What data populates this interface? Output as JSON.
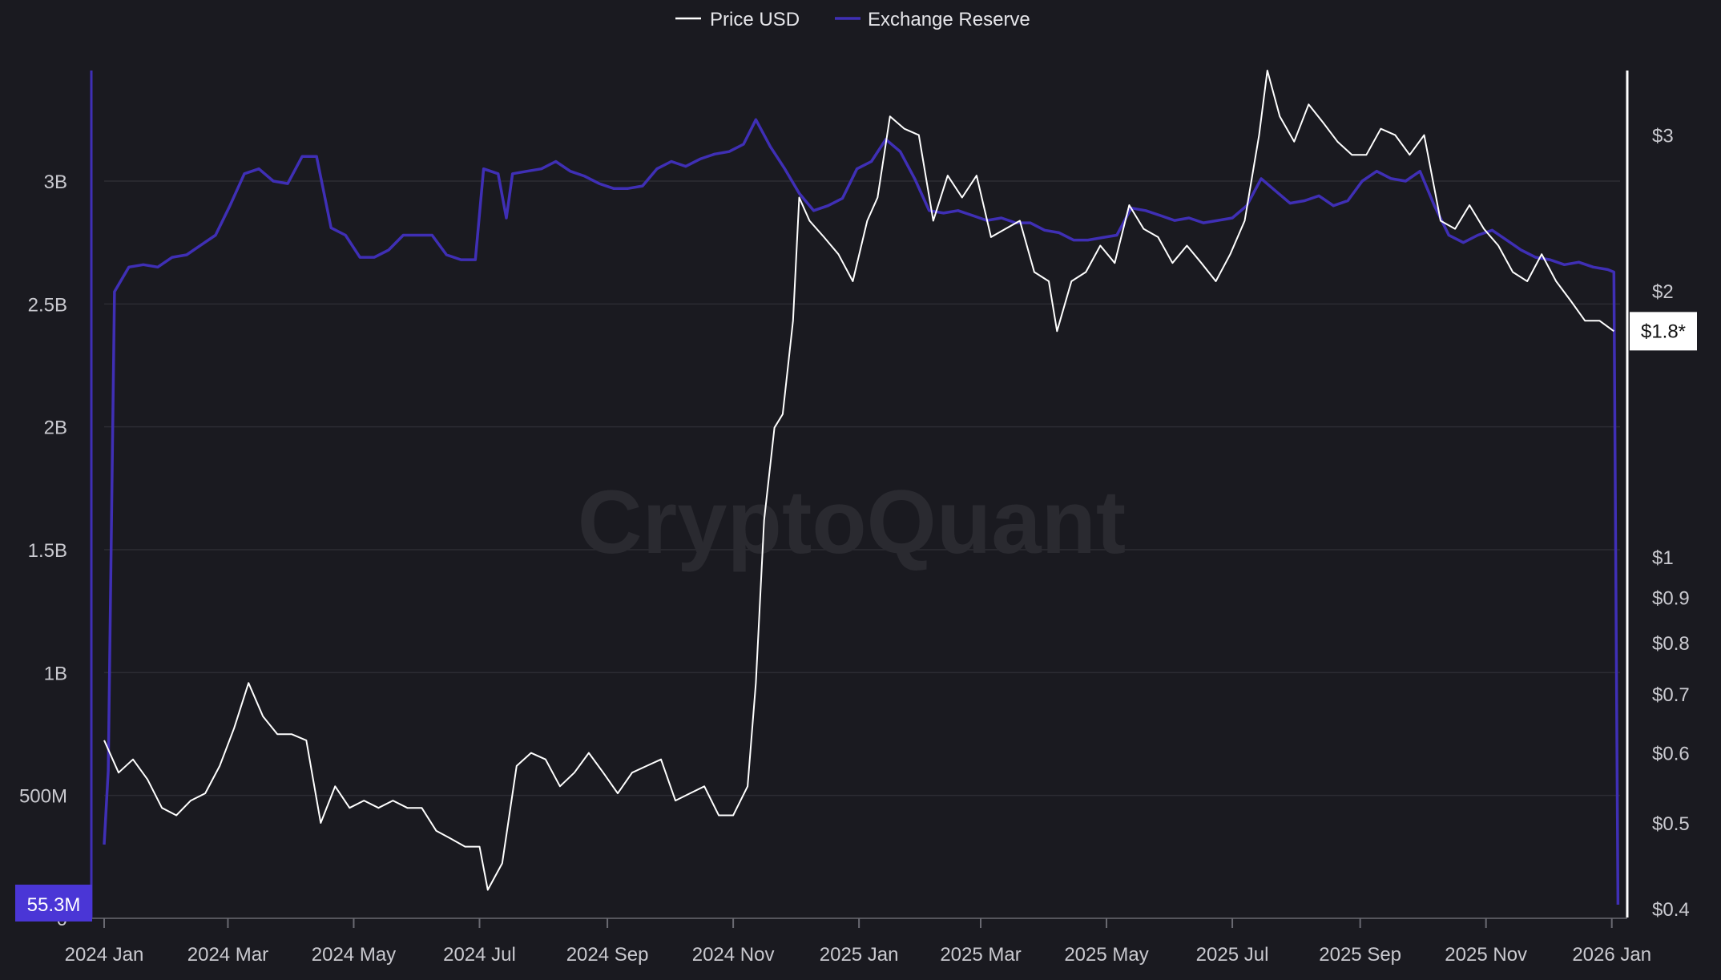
{
  "watermark": "CryptoQuant",
  "colors": {
    "background": "#1a1a20",
    "price": "#ffffff",
    "reserve": "#3f2fb5",
    "reserve_label_bg": "#4a36d6",
    "grid": "#2c2c33",
    "tick_text": "#c9c9cf",
    "watermark": "#2a2a30"
  },
  "chart_data": {
    "type": "line",
    "title": "",
    "legend": {
      "placement": "top-center",
      "entries": [
        {
          "name": "Price USD",
          "color": "#ffffff"
        },
        {
          "name": "Exchange Reserve",
          "color": "#3f2fb5"
        }
      ]
    },
    "x_axis": {
      "type": "date",
      "range": [
        "2024-01-01",
        "2026-01-05"
      ],
      "ticks": [
        {
          "date": "2024-01-01",
          "label": "2024 Jan"
        },
        {
          "date": "2024-03-01",
          "label": "2024 Mar"
        },
        {
          "date": "2024-05-01",
          "label": "2024 May"
        },
        {
          "date": "2024-07-01",
          "label": "2024 Jul"
        },
        {
          "date": "2024-09-01",
          "label": "2024 Sep"
        },
        {
          "date": "2024-11-01",
          "label": "2024 Nov"
        },
        {
          "date": "2025-01-01",
          "label": "2025 Jan"
        },
        {
          "date": "2025-03-01",
          "label": "2025 Mar"
        },
        {
          "date": "2025-05-01",
          "label": "2025 May"
        },
        {
          "date": "2025-07-01",
          "label": "2025 Jul"
        },
        {
          "date": "2025-09-01",
          "label": "2025 Sep"
        },
        {
          "date": "2025-11-01",
          "label": "2025 Nov"
        },
        {
          "date": "2026-01-01",
          "label": "2026 Jan"
        }
      ]
    },
    "y_left": {
      "label": "",
      "range": [
        0,
        3450000000
      ],
      "grid": true,
      "ticks": [
        {
          "value": 0,
          "label": "0"
        },
        {
          "value": 500000000,
          "label": "500M"
        },
        {
          "value": 1000000000,
          "label": "1B"
        },
        {
          "value": 1500000000,
          "label": "1.5B"
        },
        {
          "value": 2000000000,
          "label": "2B"
        },
        {
          "value": 2500000000,
          "label": "2.5B"
        },
        {
          "value": 3000000000,
          "label": "3B"
        }
      ],
      "last_value_label": "55.3M",
      "last_value": 55300000
    },
    "y_right": {
      "label": "",
      "scale": "log",
      "range": [
        0.39,
        3.55
      ],
      "ticks": [
        {
          "value": 0.4,
          "label": "$0.4"
        },
        {
          "value": 0.5,
          "label": "$0.5"
        },
        {
          "value": 0.6,
          "label": "$0.6"
        },
        {
          "value": 0.7,
          "label": "$0.7"
        },
        {
          "value": 0.8,
          "label": "$0.8"
        },
        {
          "value": 0.9,
          "label": "$0.9"
        },
        {
          "value": 1,
          "label": "$1"
        },
        {
          "value": 2,
          "label": "$2"
        },
        {
          "value": 3,
          "label": "$3"
        }
      ],
      "last_value_label": "$1.8*",
      "last_value": 1.8
    },
    "series": [
      {
        "name": "Price USD",
        "axis": "right",
        "color": "#ffffff",
        "points": [
          [
            "2024-01-01",
            0.62
          ],
          [
            "2024-01-08",
            0.57
          ],
          [
            "2024-01-15",
            0.59
          ],
          [
            "2024-01-22",
            0.56
          ],
          [
            "2024-01-29",
            0.52
          ],
          [
            "2024-02-05",
            0.51
          ],
          [
            "2024-02-12",
            0.53
          ],
          [
            "2024-02-19",
            0.54
          ],
          [
            "2024-02-26",
            0.58
          ],
          [
            "2024-03-04",
            0.64
          ],
          [
            "2024-03-11",
            0.72
          ],
          [
            "2024-03-18",
            0.66
          ],
          [
            "2024-03-25",
            0.63
          ],
          [
            "2024-04-01",
            0.63
          ],
          [
            "2024-04-08",
            0.62
          ],
          [
            "2024-04-15",
            0.5
          ],
          [
            "2024-04-22",
            0.55
          ],
          [
            "2024-04-29",
            0.52
          ],
          [
            "2024-05-06",
            0.53
          ],
          [
            "2024-05-13",
            0.52
          ],
          [
            "2024-05-20",
            0.53
          ],
          [
            "2024-05-27",
            0.52
          ],
          [
            "2024-06-03",
            0.52
          ],
          [
            "2024-06-10",
            0.49
          ],
          [
            "2024-06-17",
            0.48
          ],
          [
            "2024-06-24",
            0.47
          ],
          [
            "2024-07-01",
            0.47
          ],
          [
            "2024-07-05",
            0.42
          ],
          [
            "2024-07-12",
            0.45
          ],
          [
            "2024-07-19",
            0.58
          ],
          [
            "2024-07-26",
            0.6
          ],
          [
            "2024-08-02",
            0.59
          ],
          [
            "2024-08-09",
            0.55
          ],
          [
            "2024-08-16",
            0.57
          ],
          [
            "2024-08-23",
            0.6
          ],
          [
            "2024-08-30",
            0.57
          ],
          [
            "2024-09-06",
            0.54
          ],
          [
            "2024-09-13",
            0.57
          ],
          [
            "2024-09-20",
            0.58
          ],
          [
            "2024-09-27",
            0.59
          ],
          [
            "2024-10-04",
            0.53
          ],
          [
            "2024-10-11",
            0.54
          ],
          [
            "2024-10-18",
            0.55
          ],
          [
            "2024-10-25",
            0.51
          ],
          [
            "2024-11-01",
            0.51
          ],
          [
            "2024-11-08",
            0.55
          ],
          [
            "2024-11-12",
            0.72
          ],
          [
            "2024-11-16",
            1.1
          ],
          [
            "2024-11-21",
            1.4
          ],
          [
            "2024-11-25",
            1.45
          ],
          [
            "2024-11-30",
            1.85
          ],
          [
            "2024-12-03",
            2.55
          ],
          [
            "2024-12-08",
            2.4
          ],
          [
            "2024-12-15",
            2.3
          ],
          [
            "2024-12-22",
            2.2
          ],
          [
            "2024-12-29",
            2.05
          ],
          [
            "2025-01-05",
            2.4
          ],
          [
            "2025-01-10",
            2.55
          ],
          [
            "2025-01-16",
            3.15
          ],
          [
            "2025-01-23",
            3.05
          ],
          [
            "2025-01-30",
            3.0
          ],
          [
            "2025-02-06",
            2.4
          ],
          [
            "2025-02-13",
            2.7
          ],
          [
            "2025-02-20",
            2.55
          ],
          [
            "2025-02-27",
            2.7
          ],
          [
            "2025-03-06",
            2.3
          ],
          [
            "2025-03-13",
            2.35
          ],
          [
            "2025-03-20",
            2.4
          ],
          [
            "2025-03-27",
            2.1
          ],
          [
            "2025-04-03",
            2.05
          ],
          [
            "2025-04-07",
            1.8
          ],
          [
            "2025-04-14",
            2.05
          ],
          [
            "2025-04-21",
            2.1
          ],
          [
            "2025-04-28",
            2.25
          ],
          [
            "2025-05-05",
            2.15
          ],
          [
            "2025-05-12",
            2.5
          ],
          [
            "2025-05-19",
            2.35
          ],
          [
            "2025-05-26",
            2.3
          ],
          [
            "2025-06-02",
            2.15
          ],
          [
            "2025-06-09",
            2.25
          ],
          [
            "2025-06-16",
            2.15
          ],
          [
            "2025-06-23",
            2.05
          ],
          [
            "2025-06-30",
            2.2
          ],
          [
            "2025-07-07",
            2.4
          ],
          [
            "2025-07-14",
            3.0
          ],
          [
            "2025-07-18",
            3.55
          ],
          [
            "2025-07-24",
            3.15
          ],
          [
            "2025-07-31",
            2.95
          ],
          [
            "2025-08-07",
            3.25
          ],
          [
            "2025-08-14",
            3.1
          ],
          [
            "2025-08-21",
            2.95
          ],
          [
            "2025-08-28",
            2.85
          ],
          [
            "2025-09-04",
            2.85
          ],
          [
            "2025-09-11",
            3.05
          ],
          [
            "2025-09-18",
            3.0
          ],
          [
            "2025-09-25",
            2.85
          ],
          [
            "2025-10-02",
            3.0
          ],
          [
            "2025-10-10",
            2.4
          ],
          [
            "2025-10-17",
            2.35
          ],
          [
            "2025-10-24",
            2.5
          ],
          [
            "2025-10-31",
            2.35
          ],
          [
            "2025-11-07",
            2.25
          ],
          [
            "2025-11-14",
            2.1
          ],
          [
            "2025-11-21",
            2.05
          ],
          [
            "2025-11-28",
            2.2
          ],
          [
            "2025-12-05",
            2.05
          ],
          [
            "2025-12-12",
            1.95
          ],
          [
            "2025-12-19",
            1.85
          ],
          [
            "2025-12-26",
            1.85
          ],
          [
            "2026-01-02",
            1.8
          ]
        ]
      },
      {
        "name": "Exchange Reserve",
        "axis": "left",
        "color": "#3f2fb5",
        "points": [
          [
            "2024-01-01",
            300000000
          ],
          [
            "2024-01-03",
            600000000
          ],
          [
            "2024-01-06",
            2550000000
          ],
          [
            "2024-01-13",
            2650000000
          ],
          [
            "2024-01-20",
            2660000000
          ],
          [
            "2024-01-27",
            2650000000
          ],
          [
            "2024-02-03",
            2690000000
          ],
          [
            "2024-02-10",
            2700000000
          ],
          [
            "2024-02-17",
            2740000000
          ],
          [
            "2024-02-24",
            2780000000
          ],
          [
            "2024-03-02",
            2900000000
          ],
          [
            "2024-03-09",
            3030000000
          ],
          [
            "2024-03-16",
            3050000000
          ],
          [
            "2024-03-23",
            3000000000
          ],
          [
            "2024-03-30",
            2990000000
          ],
          [
            "2024-04-06",
            3100000000
          ],
          [
            "2024-04-13",
            3100000000
          ],
          [
            "2024-04-20",
            2810000000
          ],
          [
            "2024-04-27",
            2780000000
          ],
          [
            "2024-05-04",
            2690000000
          ],
          [
            "2024-05-11",
            2690000000
          ],
          [
            "2024-05-18",
            2720000000
          ],
          [
            "2024-05-25",
            2780000000
          ],
          [
            "2024-06-01",
            2780000000
          ],
          [
            "2024-06-08",
            2780000000
          ],
          [
            "2024-06-15",
            2700000000
          ],
          [
            "2024-06-22",
            2680000000
          ],
          [
            "2024-06-29",
            2680000000
          ],
          [
            "2024-07-03",
            3050000000
          ],
          [
            "2024-07-10",
            3030000000
          ],
          [
            "2024-07-14",
            2850000000
          ],
          [
            "2024-07-17",
            3030000000
          ],
          [
            "2024-07-24",
            3040000000
          ],
          [
            "2024-07-31",
            3050000000
          ],
          [
            "2024-08-07",
            3080000000
          ],
          [
            "2024-08-14",
            3040000000
          ],
          [
            "2024-08-21",
            3020000000
          ],
          [
            "2024-08-28",
            2990000000
          ],
          [
            "2024-09-04",
            2970000000
          ],
          [
            "2024-09-11",
            2970000000
          ],
          [
            "2024-09-18",
            2980000000
          ],
          [
            "2024-09-25",
            3050000000
          ],
          [
            "2024-10-02",
            3080000000
          ],
          [
            "2024-10-09",
            3060000000
          ],
          [
            "2024-10-16",
            3090000000
          ],
          [
            "2024-10-23",
            3110000000
          ],
          [
            "2024-10-30",
            3120000000
          ],
          [
            "2024-11-06",
            3150000000
          ],
          [
            "2024-11-12",
            3250000000
          ],
          [
            "2024-11-19",
            3140000000
          ],
          [
            "2024-11-26",
            3050000000
          ],
          [
            "2024-12-03",
            2950000000
          ],
          [
            "2024-12-10",
            2880000000
          ],
          [
            "2024-12-17",
            2900000000
          ],
          [
            "2024-12-24",
            2930000000
          ],
          [
            "2024-12-31",
            3050000000
          ],
          [
            "2025-01-07",
            3080000000
          ],
          [
            "2025-01-14",
            3170000000
          ],
          [
            "2025-01-21",
            3120000000
          ],
          [
            "2025-01-28",
            3010000000
          ],
          [
            "2025-02-04",
            2880000000
          ],
          [
            "2025-02-11",
            2870000000
          ],
          [
            "2025-02-18",
            2880000000
          ],
          [
            "2025-02-25",
            2860000000
          ],
          [
            "2025-03-04",
            2840000000
          ],
          [
            "2025-03-11",
            2850000000
          ],
          [
            "2025-03-18",
            2830000000
          ],
          [
            "2025-03-25",
            2830000000
          ],
          [
            "2025-04-01",
            2800000000
          ],
          [
            "2025-04-08",
            2790000000
          ],
          [
            "2025-04-15",
            2760000000
          ],
          [
            "2025-04-22",
            2760000000
          ],
          [
            "2025-04-29",
            2770000000
          ],
          [
            "2025-05-06",
            2780000000
          ],
          [
            "2025-05-13",
            2890000000
          ],
          [
            "2025-05-20",
            2880000000
          ],
          [
            "2025-05-27",
            2860000000
          ],
          [
            "2025-06-03",
            2840000000
          ],
          [
            "2025-06-10",
            2850000000
          ],
          [
            "2025-06-17",
            2830000000
          ],
          [
            "2025-06-24",
            2840000000
          ],
          [
            "2025-07-01",
            2850000000
          ],
          [
            "2025-07-08",
            2900000000
          ],
          [
            "2025-07-15",
            3010000000
          ],
          [
            "2025-07-22",
            2960000000
          ],
          [
            "2025-07-29",
            2910000000
          ],
          [
            "2025-08-05",
            2920000000
          ],
          [
            "2025-08-12",
            2940000000
          ],
          [
            "2025-08-19",
            2900000000
          ],
          [
            "2025-08-26",
            2920000000
          ],
          [
            "2025-09-02",
            3000000000
          ],
          [
            "2025-09-09",
            3040000000
          ],
          [
            "2025-09-16",
            3010000000
          ],
          [
            "2025-09-23",
            3000000000
          ],
          [
            "2025-09-30",
            3040000000
          ],
          [
            "2025-10-07",
            2900000000
          ],
          [
            "2025-10-14",
            2780000000
          ],
          [
            "2025-10-21",
            2750000000
          ],
          [
            "2025-10-28",
            2780000000
          ],
          [
            "2025-11-04",
            2800000000
          ],
          [
            "2025-11-11",
            2760000000
          ],
          [
            "2025-11-18",
            2720000000
          ],
          [
            "2025-11-25",
            2690000000
          ],
          [
            "2025-12-02",
            2680000000
          ],
          [
            "2025-12-09",
            2660000000
          ],
          [
            "2025-12-16",
            2670000000
          ],
          [
            "2025-12-23",
            2650000000
          ],
          [
            "2025-12-30",
            2640000000
          ],
          [
            "2026-01-02",
            2630000000
          ],
          [
            "2026-01-04",
            55300000
          ]
        ]
      }
    ]
  }
}
